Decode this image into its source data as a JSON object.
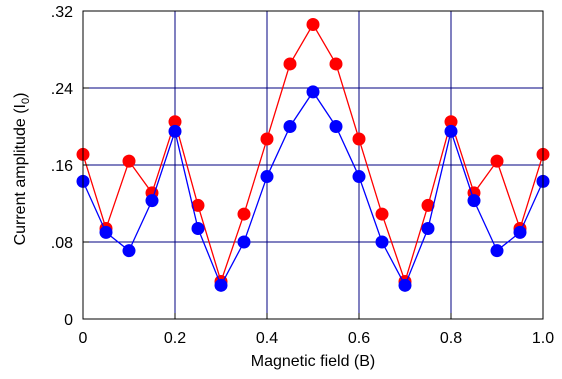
{
  "chart_data": {
    "type": "line",
    "xlabel": "Magnetic field (B)",
    "ylabel": "Current amplitude (I",
    "ylabel_sub": "0",
    "ylabel_end": ")",
    "xlim": [
      0,
      1.0
    ],
    "ylim": [
      0,
      0.32
    ],
    "grid": true,
    "x_ticks": [
      0,
      0.2,
      0.4,
      0.6,
      0.8,
      1.0
    ],
    "x_tick_labels": [
      "0",
      "0.2",
      "0.4",
      "0.6",
      "0.8",
      "1.0"
    ],
    "y_ticks": [
      0,
      0.08,
      0.16,
      0.24,
      0.32
    ],
    "y_tick_labels": [
      "0",
      ".08",
      ".16",
      ".24",
      ".32"
    ],
    "x": [
      0,
      0.05,
      0.1,
      0.15,
      0.2,
      0.25,
      0.3,
      0.35,
      0.4,
      0.45,
      0.5,
      0.55,
      0.6,
      0.65,
      0.7,
      0.75,
      0.8,
      0.85,
      0.9,
      0.95,
      1.0
    ],
    "series": [
      {
        "color": "#ff0000",
        "values": [
          0.171,
          0.094,
          0.164,
          0.131,
          0.205,
          0.118,
          0.039,
          0.109,
          0.187,
          0.265,
          0.306,
          0.265,
          0.187,
          0.109,
          0.039,
          0.118,
          0.205,
          0.131,
          0.164,
          0.094,
          0.171
        ]
      },
      {
        "color": "#0000ff",
        "values": [
          0.143,
          0.09,
          0.071,
          0.123,
          0.195,
          0.094,
          0.035,
          0.08,
          0.148,
          0.2,
          0.236,
          0.2,
          0.148,
          0.08,
          0.035,
          0.094,
          0.195,
          0.123,
          0.071,
          0.09,
          0.143
        ]
      }
    ]
  }
}
